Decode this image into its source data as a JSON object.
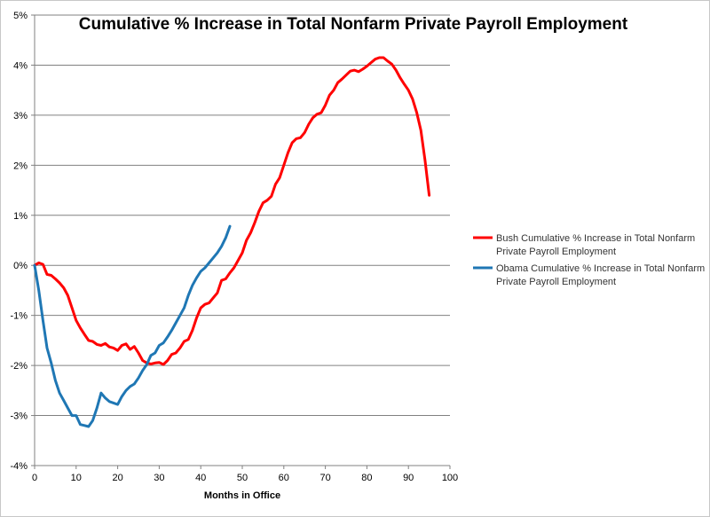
{
  "chart_data": {
    "type": "line",
    "title": "Cumulative % Increase in Total Nonfarm Private Payroll Employment",
    "xlabel": "Months in Office",
    "ylabel": "",
    "xlim": [
      0,
      100
    ],
    "ylim": [
      -4,
      5
    ],
    "x_ticks": [
      0,
      10,
      20,
      30,
      40,
      50,
      60,
      70,
      80,
      90,
      100
    ],
    "y_ticks": [
      -4,
      -3,
      -2,
      -1,
      0,
      1,
      2,
      3,
      4,
      5
    ],
    "x_tick_labels": [
      "0",
      "10",
      "20",
      "30",
      "40",
      "50",
      "60",
      "70",
      "80",
      "90",
      "100"
    ],
    "y_tick_labels": [
      "-4%",
      "-3%",
      "-2%",
      "-1%",
      "0%",
      "1%",
      "2%",
      "3%",
      "4%",
      "5%"
    ],
    "grid": "horizontal",
    "legend_position": "right",
    "series": [
      {
        "name_lines": [
          "Bush Cumulative % Increase in Total Nonfarm",
          "Private Payroll Employment"
        ],
        "color": "#ff0000",
        "points": [
          [
            0,
            0.0
          ],
          [
            1,
            0.05
          ],
          [
            2,
            0.02
          ],
          [
            3,
            -0.18
          ],
          [
            4,
            -0.2
          ],
          [
            5,
            -0.27
          ],
          [
            6,
            -0.35
          ],
          [
            7,
            -0.45
          ],
          [
            8,
            -0.6
          ],
          [
            9,
            -0.85
          ],
          [
            10,
            -1.1
          ],
          [
            11,
            -1.25
          ],
          [
            12,
            -1.38
          ],
          [
            13,
            -1.5
          ],
          [
            14,
            -1.52
          ],
          [
            15,
            -1.58
          ],
          [
            16,
            -1.6
          ],
          [
            17,
            -1.56
          ],
          [
            18,
            -1.63
          ],
          [
            19,
            -1.65
          ],
          [
            20,
            -1.7
          ],
          [
            21,
            -1.6
          ],
          [
            22,
            -1.57
          ],
          [
            23,
            -1.68
          ],
          [
            24,
            -1.62
          ],
          [
            25,
            -1.75
          ],
          [
            26,
            -1.9
          ],
          [
            27,
            -1.95
          ],
          [
            28,
            -1.97
          ],
          [
            29,
            -1.95
          ],
          [
            30,
            -1.94
          ],
          [
            31,
            -1.98
          ],
          [
            32,
            -1.9
          ],
          [
            33,
            -1.78
          ],
          [
            34,
            -1.75
          ],
          [
            35,
            -1.65
          ],
          [
            36,
            -1.52
          ],
          [
            37,
            -1.48
          ],
          [
            38,
            -1.3
          ],
          [
            39,
            -1.05
          ],
          [
            40,
            -0.85
          ],
          [
            41,
            -0.78
          ],
          [
            42,
            -0.75
          ],
          [
            43,
            -0.65
          ],
          [
            44,
            -0.55
          ],
          [
            45,
            -0.3
          ],
          [
            46,
            -0.27
          ],
          [
            47,
            -0.15
          ],
          [
            48,
            -0.05
          ],
          [
            49,
            0.1
          ],
          [
            50,
            0.25
          ],
          [
            51,
            0.5
          ],
          [
            52,
            0.65
          ],
          [
            53,
            0.85
          ],
          [
            54,
            1.08
          ],
          [
            55,
            1.25
          ],
          [
            56,
            1.3
          ],
          [
            57,
            1.38
          ],
          [
            58,
            1.62
          ],
          [
            59,
            1.75
          ],
          [
            60,
            2.0
          ],
          [
            61,
            2.25
          ],
          [
            62,
            2.45
          ],
          [
            63,
            2.53
          ],
          [
            64,
            2.55
          ],
          [
            65,
            2.65
          ],
          [
            66,
            2.82
          ],
          [
            67,
            2.95
          ],
          [
            68,
            3.02
          ],
          [
            69,
            3.05
          ],
          [
            70,
            3.2
          ],
          [
            71,
            3.4
          ],
          [
            72,
            3.5
          ],
          [
            73,
            3.65
          ],
          [
            74,
            3.72
          ],
          [
            75,
            3.8
          ],
          [
            76,
            3.88
          ],
          [
            77,
            3.9
          ],
          [
            78,
            3.87
          ],
          [
            79,
            3.92
          ],
          [
            80,
            3.98
          ],
          [
            81,
            4.05
          ],
          [
            82,
            4.12
          ],
          [
            83,
            4.15
          ],
          [
            84,
            4.15
          ],
          [
            85,
            4.08
          ],
          [
            86,
            4.02
          ],
          [
            87,
            3.9
          ],
          [
            88,
            3.75
          ],
          [
            89,
            3.62
          ],
          [
            90,
            3.5
          ],
          [
            91,
            3.32
          ],
          [
            92,
            3.05
          ],
          [
            93,
            2.7
          ],
          [
            94,
            2.1
          ],
          [
            95,
            1.4
          ]
        ]
      },
      {
        "name_lines": [
          "Obama Cumulative % Increase in Total Nonfarm",
          "Private Payroll Employment"
        ],
        "color": "#1f77b4",
        "points": [
          [
            0,
            0.0
          ],
          [
            1,
            -0.5
          ],
          [
            2,
            -1.1
          ],
          [
            3,
            -1.65
          ],
          [
            4,
            -1.95
          ],
          [
            5,
            -2.3
          ],
          [
            6,
            -2.55
          ],
          [
            7,
            -2.7
          ],
          [
            8,
            -2.85
          ],
          [
            9,
            -3.0
          ],
          [
            10,
            -3.0
          ],
          [
            11,
            -3.18
          ],
          [
            12,
            -3.2
          ],
          [
            13,
            -3.22
          ],
          [
            14,
            -3.1
          ],
          [
            15,
            -2.85
          ],
          [
            16,
            -2.55
          ],
          [
            17,
            -2.65
          ],
          [
            18,
            -2.72
          ],
          [
            19,
            -2.75
          ],
          [
            20,
            -2.78
          ],
          [
            21,
            -2.62
          ],
          [
            22,
            -2.5
          ],
          [
            23,
            -2.42
          ],
          [
            24,
            -2.37
          ],
          [
            25,
            -2.25
          ],
          [
            26,
            -2.1
          ],
          [
            27,
            -1.98
          ],
          [
            28,
            -1.8
          ],
          [
            29,
            -1.75
          ],
          [
            30,
            -1.6
          ],
          [
            31,
            -1.55
          ],
          [
            32,
            -1.43
          ],
          [
            33,
            -1.3
          ],
          [
            34,
            -1.15
          ],
          [
            35,
            -1.0
          ],
          [
            36,
            -0.85
          ],
          [
            37,
            -0.6
          ],
          [
            38,
            -0.4
          ],
          [
            39,
            -0.25
          ],
          [
            40,
            -0.12
          ],
          [
            41,
            -0.05
          ],
          [
            42,
            0.05
          ],
          [
            43,
            0.15
          ],
          [
            44,
            0.25
          ],
          [
            45,
            0.38
          ],
          [
            46,
            0.55
          ],
          [
            47,
            0.78
          ]
        ]
      }
    ]
  }
}
